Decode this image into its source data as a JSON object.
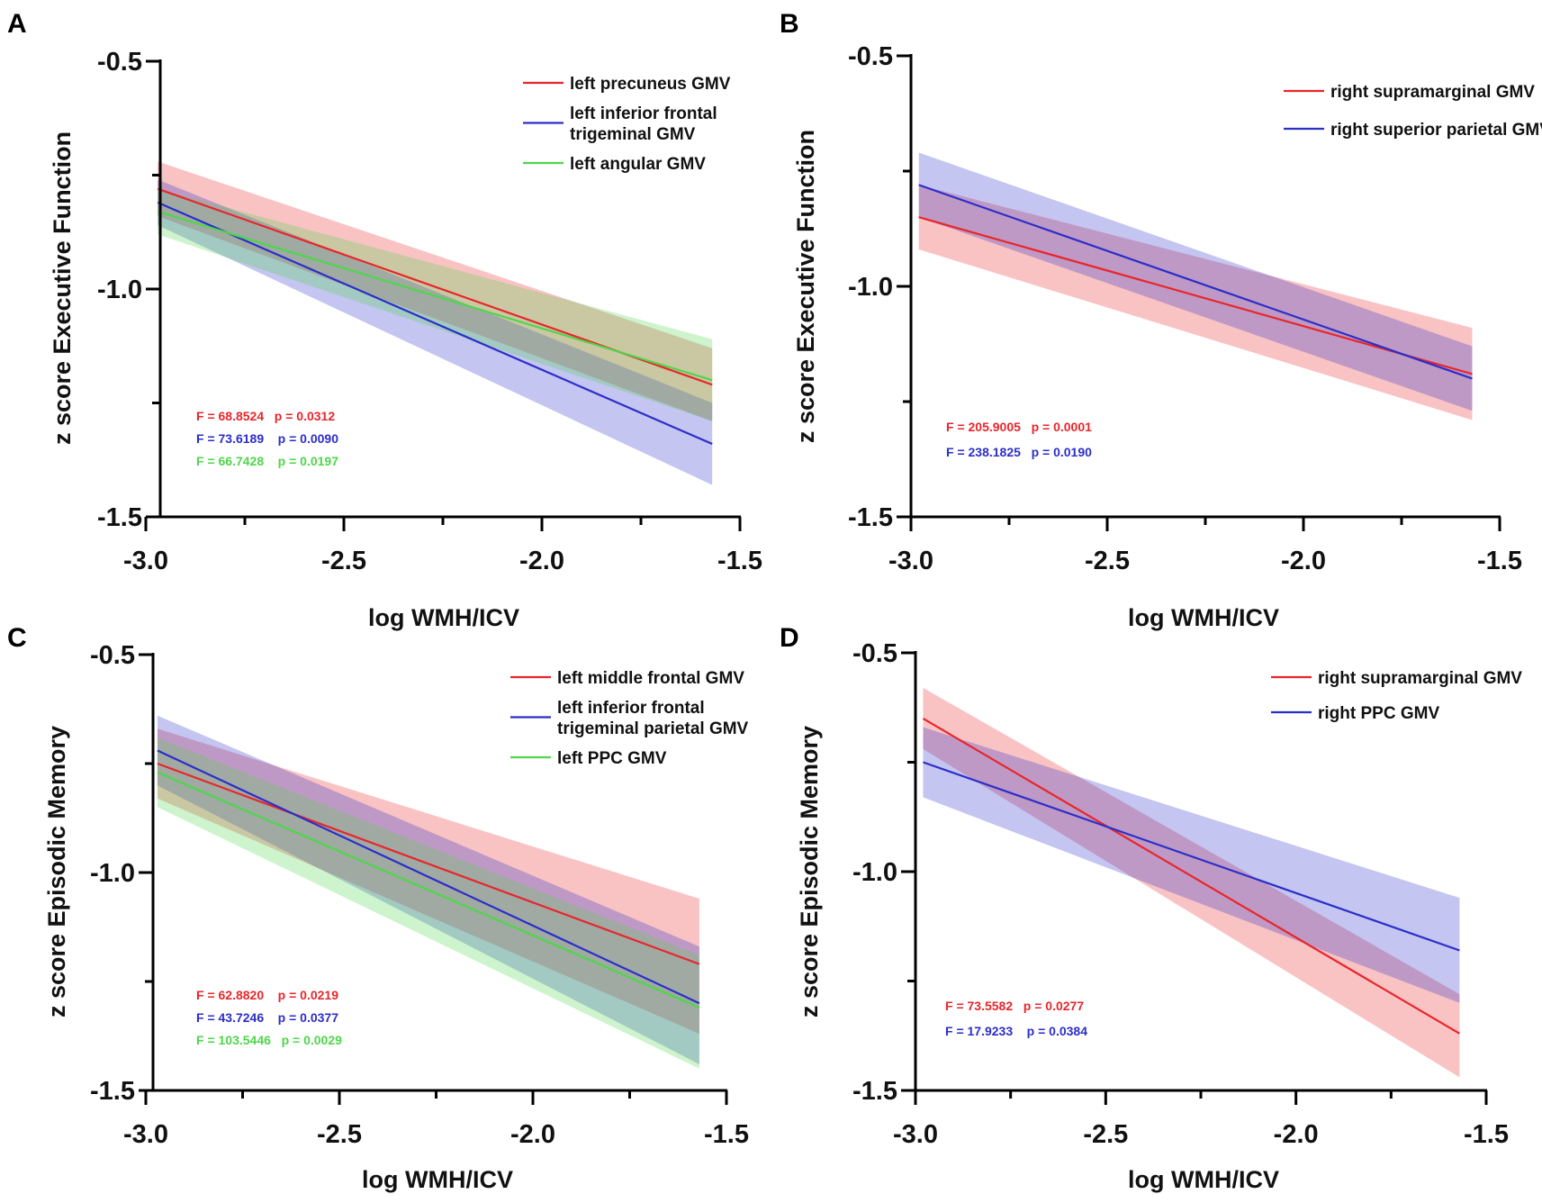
{
  "figure": {
    "background": "#ffffff"
  },
  "chart_data": [
    {
      "panel": "A",
      "type": "line",
      "xlabel": "log WMH/ICV",
      "ylabel": "z score Executive Function",
      "xlim": [
        -3.0,
        -1.5
      ],
      "ylim": [
        -1.5,
        -0.5
      ],
      "xticks": [
        "-3.0",
        "-2.5",
        "-2.0",
        "-1.5"
      ],
      "yticks": [
        "-0.5",
        "-1.0",
        "-1.5"
      ],
      "series": [
        {
          "name": "left precuneus GMV",
          "legend_lines": [
            "left precuneus GMV"
          ],
          "color": "#e8262b",
          "x": [
            -2.97,
            -1.57
          ],
          "y": [
            -0.78,
            -1.21
          ],
          "ci_low": [
            -0.84,
            -1.29
          ],
          "ci_high": [
            -0.72,
            -1.13
          ],
          "stat": "F = 68.8524   p = 0.0312"
        },
        {
          "name": "left inferior frontal trigeminal GMV",
          "legend_lines": [
            "left inferior frontal",
            "trigeminal GMV"
          ],
          "color": "#2b2ec9",
          "x": [
            -2.97,
            -1.57
          ],
          "y": [
            -0.81,
            -1.34
          ],
          "ci_low": [
            -0.86,
            -1.43
          ],
          "ci_high": [
            -0.76,
            -1.25
          ],
          "stat": "F = 73.6189    p = 0.0090"
        },
        {
          "name": "left angular GMV",
          "legend_lines": [
            "left angular GMV"
          ],
          "color": "#4fd64a",
          "x": [
            -2.97,
            -1.57
          ],
          "y": [
            -0.83,
            -1.2
          ],
          "ci_low": [
            -0.88,
            -1.29
          ],
          "ci_high": [
            -0.78,
            -1.11
          ],
          "stat": "F = 66.7428    p = 0.0197"
        }
      ]
    },
    {
      "panel": "B",
      "type": "line",
      "xlabel": "log WMH/ICV",
      "ylabel": "z score Executive Function",
      "xlim": [
        -3.0,
        -1.5
      ],
      "ylim": [
        -1.5,
        -0.5
      ],
      "xticks": [
        "-3.0",
        "-2.5",
        "-2.0",
        "-1.5"
      ],
      "yticks": [
        "-0.5",
        "-1.0",
        "-1.5"
      ],
      "series": [
        {
          "name": "right supramarginal GMV",
          "legend_lines": [
            "right supramarginal GMV"
          ],
          "color": "#e8262b",
          "x": [
            -2.98,
            -1.57
          ],
          "y": [
            -0.85,
            -1.19
          ],
          "ci_low": [
            -0.92,
            -1.29
          ],
          "ci_high": [
            -0.78,
            -1.09
          ],
          "stat": "F = 205.9005   p = 0.0001"
        },
        {
          "name": "right superior parietal GMV",
          "legend_lines": [
            "right superior parietal GMV"
          ],
          "color": "#2b2ec9",
          "x": [
            -2.98,
            -1.57
          ],
          "y": [
            -0.78,
            -1.2
          ],
          "ci_low": [
            -0.85,
            -1.27
          ],
          "ci_high": [
            -0.71,
            -1.13
          ],
          "stat": "F = 238.1825   p = 0.0190"
        }
      ]
    },
    {
      "panel": "C",
      "type": "line",
      "xlabel": "log WMH/ICV",
      "ylabel": "z score Episodic Memory",
      "xlim": [
        -3.0,
        -1.5
      ],
      "ylim": [
        -1.5,
        -0.5
      ],
      "xticks": [
        "-3.0",
        "-2.5",
        "-2.0",
        "-1.5"
      ],
      "yticks": [
        "-0.5",
        "-1.0",
        "-1.5"
      ],
      "series": [
        {
          "name": "left middle frontal GMV",
          "legend_lines": [
            "left middle frontal GMV"
          ],
          "color": "#e8262b",
          "x": [
            -2.97,
            -1.57
          ],
          "y": [
            -0.75,
            -1.21
          ],
          "ci_low": [
            -0.83,
            -1.37
          ],
          "ci_high": [
            -0.67,
            -1.06
          ]
        },
        {
          "name": "left inferior frontal trigeminal parietal GMV",
          "legend_lines": [
            "left inferior frontal",
            "trigeminal parietal GMV"
          ],
          "color": "#2b2ec9",
          "x": [
            -2.97,
            -1.57
          ],
          "y": [
            -0.72,
            -1.3
          ],
          "ci_low": [
            -0.8,
            -1.44
          ],
          "ci_high": [
            -0.64,
            -1.17
          ]
        },
        {
          "name": "left PPC GMV",
          "legend_lines": [
            "left PPC GMV"
          ],
          "color": "#4fd64a",
          "x": [
            -2.97,
            -1.57
          ],
          "y": [
            -0.77,
            -1.31
          ],
          "ci_low": [
            -0.85,
            -1.45
          ],
          "ci_high": [
            -0.69,
            -1.19
          ]
        }
      ],
      "stats": [
        {
          "text": "F = 62.8820    p = 0.0219",
          "color": "#e8262b"
        },
        {
          "text": "F = 43.7246    p = 0.0377",
          "color": "#2b2ec9"
        },
        {
          "text": "F = 103.5446   p = 0.0029",
          "color": "#4fd64a"
        }
      ]
    },
    {
      "panel": "D",
      "type": "line",
      "xlabel": "log WMH/ICV",
      "ylabel": "z score Episodic Memory",
      "xlim": [
        -3.0,
        -1.5
      ],
      "ylim": [
        -1.5,
        -0.5
      ],
      "xticks": [
        "-3.0",
        "-2.5",
        "-2.0",
        "-1.5"
      ],
      "yticks": [
        "-0.5",
        "-1.0",
        "-1.5"
      ],
      "series": [
        {
          "name": "right supramarginal GMV",
          "legend_lines": [
            "right supramarginal GMV"
          ],
          "color": "#e8262b",
          "x": [
            -2.98,
            -1.57
          ],
          "y": [
            -0.65,
            -1.37
          ],
          "ci_low": [
            -0.72,
            -1.47
          ],
          "ci_high": [
            -0.58,
            -1.28
          ]
        },
        {
          "name": "right PPC GMV",
          "legend_lines": [
            "right PPC GMV"
          ],
          "color": "#2b2ec9",
          "x": [
            -2.98,
            -1.57
          ],
          "y": [
            -0.75,
            -1.18
          ],
          "ci_low": [
            -0.83,
            -1.3
          ],
          "ci_high": [
            -0.67,
            -1.06
          ]
        }
      ],
      "stats": [
        {
          "text": "F = 73.5582   p = 0.0277",
          "color": "#e8262b"
        },
        {
          "text": "F = 17.9233    p = 0.0384",
          "color": "#2b2ec9"
        }
      ]
    }
  ]
}
